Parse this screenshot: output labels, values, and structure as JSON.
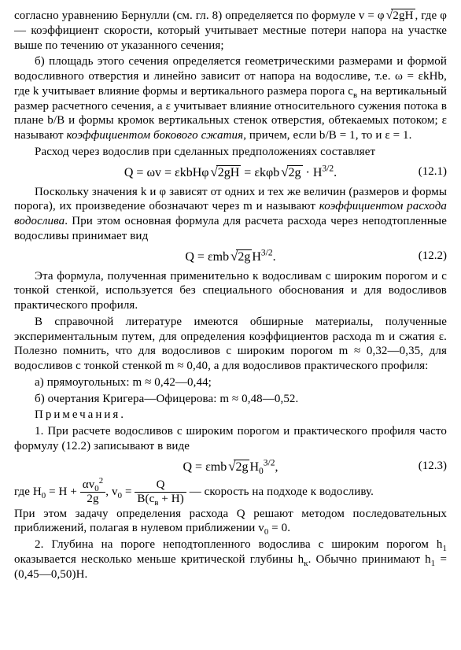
{
  "p1a": "согласно уравнению Бернулли (см. гл. 8) определяется по формуле",
  "p1b": ", где φ — коэффициент скорости, который учитывает местные потери напора на участке выше по течению от указанного сечения;",
  "p1_v": "v = φ",
  "p1_rad": "2gH",
  "p2a": "б) площадь этого сечения определяется геометрическими размерами и формой водосливного отверстия и линейно зависит от напора на водосливе, т.е. ω = εkHb, где k учитывает влияние формы и вертикального размера порога c",
  "p2_sub": "в",
  "p2b": " на вертикальный размер расчетного сечения, а ε учитывает влияние относительного сужения потока в плане b/B и формы кромок вертикальных стенок отверстия, обтекаемых потоком; ε называют ",
  "p2_it": "коэффициентом бокового сжатия",
  "p2c": ", причем, если b/B = 1, то и ε = 1.",
  "p3": "Расход через водослив при сделанных предположениях составляет",
  "eq1_a": "Q = ωv = εkbHφ",
  "eq1_rad1": "2gH",
  "eq1_b": " = εkφb",
  "eq1_rad2": "2g",
  "eq1_c": " · H",
  "eq1_sup": "3/2",
  "eq1_d": ".",
  "eq1_num": "(12.1)",
  "p4a": "Поскольку значения k и φ зависят от одних и тех же величин (размеров и формы порога), их произведение обозначают через m и называют ",
  "p4_it": "коэффициентом расхода водослива",
  "p4b": ". При этом основная формула для расчета расхода через неподтопленные водосливы принимает вид",
  "eq2_a": "Q = εmb",
  "eq2_rad": "2g",
  "eq2_b": "H",
  "eq2_sup": "3/2",
  "eq2_c": ".",
  "eq2_num": "(12.2)",
  "p5": "Эта формула, полученная применительно к водосливам с широким порогом и с тонкой стенкой, используется без специального обоснования и для водосливов практического профиля.",
  "p6": "В справочной литературе имеются обширные материалы, полученные экспериментальным путем, для определения коэффициентов расхода m и сжатия ε. Полезно помнить, что для водосливов с широким порогом m ≈ 0,32—0,35, для водосливов с тонкой стенкой m ≈ 0,40, а для водосливов практического профиля:",
  "p7": "а) прямоугольных: m ≈ 0,42—0,44;",
  "p8": "б) очертания Кригера—Офицерова: m ≈ 0,48—0,52.",
  "p9_label": "Примечания",
  "p9_dot": ".",
  "p10": "1. При расчете водосливов с широким порогом и практического профиля часто формулу (12.2) записывают в виде",
  "eq3_a": "Q = εmb",
  "eq3_rad": "2g",
  "eq3_b": "H",
  "eq3_sub": "0",
  "eq3_sup": "3/2",
  "eq3_c": ",",
  "eq3_num": "(12.3)",
  "p11_a": "где  H",
  "p11_sub0a": "0",
  "p11_eq1": " = H + ",
  "p11_num1_a": "αv",
  "p11_num1_sub": "0",
  "p11_num1_sup": "2",
  "p11_den1": "2g",
  "p11_mid": ",  v",
  "p11_sub0b": "0",
  "p11_eq2": " = ",
  "p11_num2": "Q",
  "p11_den2_a": "B(c",
  "p11_den2_sub": "в",
  "p11_den2_b": " + H)",
  "p11_tail": "  — скорость на подходе к водосливу.",
  "p12a": "При этом задачу определения расхода Q решают методом последовательных приближений, полагая в нулевом приближении  v",
  "p12_sub": "0",
  "p12b": " = 0.",
  "p13a": "2. Глубина на пороге неподтопленного водослива с широким порогом  h",
  "p13_sub1": "1",
  "p13b": " оказывается несколько меньше критической глубины h",
  "p13_subk": "к",
  "p13c": ". Обычно принимают  h",
  "p13_sub1b": "1",
  "p13d": " = (0,45—0,50)H."
}
